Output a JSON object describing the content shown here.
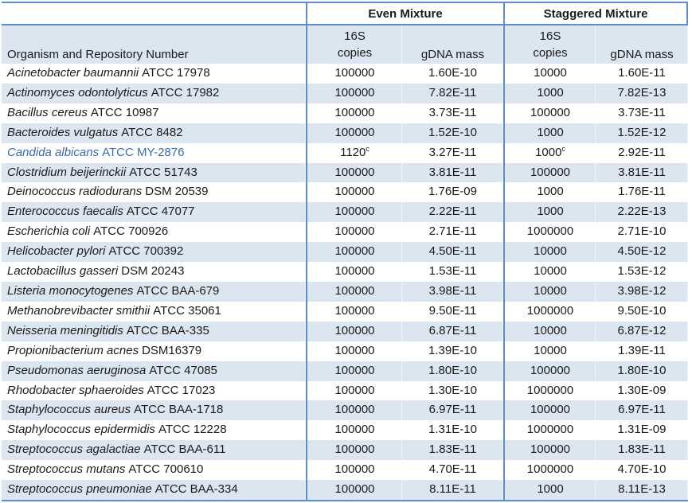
{
  "table": {
    "group_headers": {
      "even": "Even Mixture",
      "staggered": "Staggered Mixture"
    },
    "organism_header": "Organism and Repository Number",
    "sub_headers": {
      "copies_line1": "16S",
      "copies_line2": "copies",
      "gdna": "gDNA mass"
    },
    "colors": {
      "border_blue": "#5b8dc9",
      "stripe_blue": "#dce6f1",
      "highlight_text_blue": "#3a6ca8"
    },
    "rows": [
      {
        "organism": "Acinetobacter baumannii",
        "repository": "ATCC 17978",
        "even_copies": "100000",
        "even_copies_sup": "",
        "even_gdna": "1.60E-10",
        "stag_copies": "10000",
        "stag_copies_sup": "",
        "stag_gdna": "1.60E-11",
        "highlight": false
      },
      {
        "organism": "Actinomyces odontolyticus",
        "repository": "ATCC 17982",
        "even_copies": "100000",
        "even_copies_sup": "",
        "even_gdna": "7.82E-11",
        "stag_copies": "1000",
        "stag_copies_sup": "",
        "stag_gdna": "7.82E-13",
        "highlight": false
      },
      {
        "organism": "Bacillus cereus",
        "repository": "ATCC 10987",
        "even_copies": "100000",
        "even_copies_sup": "",
        "even_gdna": "3.73E-11",
        "stag_copies": "100000",
        "stag_copies_sup": "",
        "stag_gdna": "3.73E-11",
        "highlight": false
      },
      {
        "organism": "Bacteroides vulgatus",
        "repository": "ATCC 8482",
        "even_copies": "100000",
        "even_copies_sup": "",
        "even_gdna": "1.52E-10",
        "stag_copies": "1000",
        "stag_copies_sup": "",
        "stag_gdna": "1.52E-12",
        "highlight": false
      },
      {
        "organism": "Candida albicans",
        "repository": "ATCC MY-2876",
        "even_copies": "1120",
        "even_copies_sup": "c",
        "even_gdna": "3.27E-11",
        "stag_copies": "1000",
        "stag_copies_sup": "c",
        "stag_gdna": "2.92E-11",
        "highlight": true
      },
      {
        "organism": "Clostridium beijerinckii",
        "repository": "ATCC 51743",
        "even_copies": "100000",
        "even_copies_sup": "",
        "even_gdna": "3.81E-11",
        "stag_copies": "100000",
        "stag_copies_sup": "",
        "stag_gdna": "3.81E-11",
        "highlight": false
      },
      {
        "organism": "Deinococcus radiodurans",
        "repository": "DSM 20539",
        "even_copies": "100000",
        "even_copies_sup": "",
        "even_gdna": "1.76E-09",
        "stag_copies": "1000",
        "stag_copies_sup": "",
        "stag_gdna": "1.76E-11",
        "highlight": false
      },
      {
        "organism": "Enterococcus faecalis",
        "repository": "ATCC 47077",
        "even_copies": "100000",
        "even_copies_sup": "",
        "even_gdna": "2.22E-11",
        "stag_copies": "1000",
        "stag_copies_sup": "",
        "stag_gdna": "2.22E-13",
        "highlight": false
      },
      {
        "organism": "Escherichia coli",
        "repository": "ATCC 700926",
        "even_copies": "100000",
        "even_copies_sup": "",
        "even_gdna": "2.71E-11",
        "stag_copies": "1000000",
        "stag_copies_sup": "",
        "stag_gdna": "2.71E-10",
        "highlight": false
      },
      {
        "organism": "Helicobacter pylori",
        "repository": "ATCC 700392",
        "even_copies": "100000",
        "even_copies_sup": "",
        "even_gdna": "4.50E-11",
        "stag_copies": "10000",
        "stag_copies_sup": "",
        "stag_gdna": "4.50E-12",
        "highlight": false
      },
      {
        "organism": "Lactobacillus gasseri",
        "repository": "DSM 20243",
        "even_copies": "100000",
        "even_copies_sup": "",
        "even_gdna": "1.53E-11",
        "stag_copies": "10000",
        "stag_copies_sup": "",
        "stag_gdna": "1.53E-12",
        "highlight": false
      },
      {
        "organism": "Listeria monocytogenes",
        "repository": "ATCC BAA-679",
        "even_copies": "100000",
        "even_copies_sup": "",
        "even_gdna": "3.98E-11",
        "stag_copies": "10000",
        "stag_copies_sup": "",
        "stag_gdna": "3.98E-12",
        "highlight": false
      },
      {
        "organism": "Methanobrevibacter smithii",
        "repository": "ATCC 35061",
        "even_copies": "100000",
        "even_copies_sup": "",
        "even_gdna": "9.50E-11",
        "stag_copies": "1000000",
        "stag_copies_sup": "",
        "stag_gdna": "9.50E-10",
        "highlight": false
      },
      {
        "organism": "Neisseria meningitidis",
        "repository": "ATCC BAA-335",
        "even_copies": "100000",
        "even_copies_sup": "",
        "even_gdna": "6.87E-11",
        "stag_copies": "10000",
        "stag_copies_sup": "",
        "stag_gdna": "6.87E-12",
        "highlight": false
      },
      {
        "organism": "Propionibacterium acnes",
        "repository": "DSM16379",
        "even_copies": "100000",
        "even_copies_sup": "",
        "even_gdna": "1.39E-10",
        "stag_copies": "10000",
        "stag_copies_sup": "",
        "stag_gdna": "1.39E-11",
        "highlight": false
      },
      {
        "organism": "Pseudomonas aeruginosa",
        "repository": "ATCC 47085",
        "even_copies": "100000",
        "even_copies_sup": "",
        "even_gdna": "1.80E-10",
        "stag_copies": "100000",
        "stag_copies_sup": "",
        "stag_gdna": "1.80E-10",
        "highlight": false
      },
      {
        "organism": "Rhodobacter sphaeroides",
        "repository": "ATCC 17023",
        "even_copies": "100000",
        "even_copies_sup": "",
        "even_gdna": "1.30E-10",
        "stag_copies": "1000000",
        "stag_copies_sup": "",
        "stag_gdna": "1.30E-09",
        "highlight": false
      },
      {
        "organism": "Staphylococcus aureus",
        "repository": "ATCC BAA-1718",
        "even_copies": "100000",
        "even_copies_sup": "",
        "even_gdna": "6.97E-11",
        "stag_copies": "100000",
        "stag_copies_sup": "",
        "stag_gdna": "6.97E-11",
        "highlight": false
      },
      {
        "organism": "Staphylococcus epidermidis",
        "repository": "ATCC 12228",
        "even_copies": "100000",
        "even_copies_sup": "",
        "even_gdna": "1.31E-10",
        "stag_copies": "1000000",
        "stag_copies_sup": "",
        "stag_gdna": "1.31E-09",
        "highlight": false
      },
      {
        "organism": "Streptococcus agalactiae",
        "repository": "ATCC BAA-611",
        "even_copies": "100000",
        "even_copies_sup": "",
        "even_gdna": "1.83E-11",
        "stag_copies": "100000",
        "stag_copies_sup": "",
        "stag_gdna": "1.83E-11",
        "highlight": false
      },
      {
        "organism": "Streptococcus mutans",
        "repository": "ATCC 700610",
        "even_copies": "100000",
        "even_copies_sup": "",
        "even_gdna": "4.70E-11",
        "stag_copies": "1000000",
        "stag_copies_sup": "",
        "stag_gdna": "4.70E-10",
        "highlight": false
      },
      {
        "organism": "Streptococcus pneumoniae",
        "repository": "ATCC BAA-334",
        "even_copies": "100000",
        "even_copies_sup": "",
        "even_gdna": "8.11E-11",
        "stag_copies": "1000",
        "stag_copies_sup": "",
        "stag_gdna": "8.11E-13",
        "highlight": false
      }
    ]
  }
}
